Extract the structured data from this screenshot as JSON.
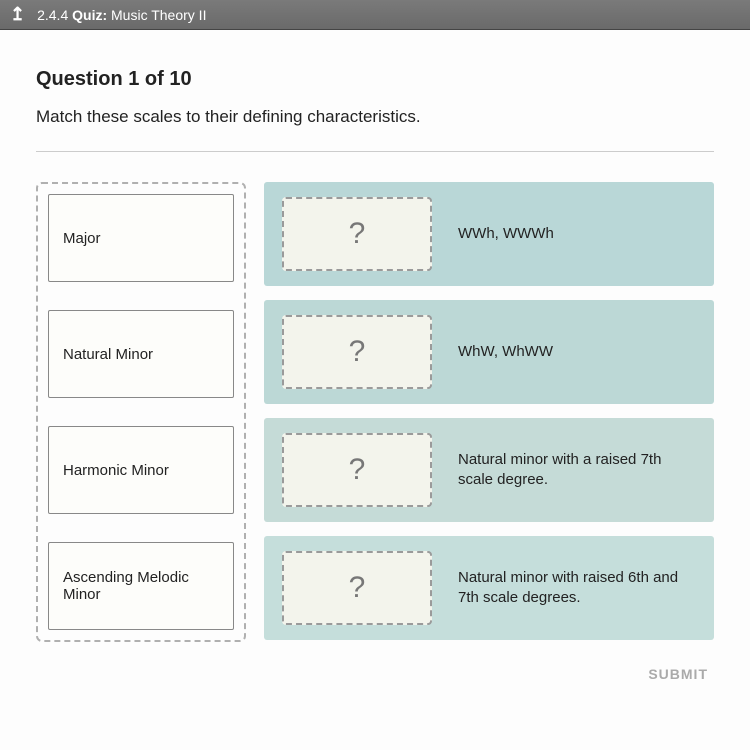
{
  "topbar": {
    "back_glyph": "↥",
    "section": "2.4.4",
    "quiz_label": "Quiz:",
    "title": "Music Theory II"
  },
  "question": {
    "header": "Question 1 of 10",
    "prompt": "Match these scales to their defining characteristics."
  },
  "draggables": [
    {
      "label": "Major"
    },
    {
      "label": "Natural Minor"
    },
    {
      "label": "Harmonic Minor"
    },
    {
      "label": "Ascending Melodic Minor"
    }
  ],
  "targets": [
    {
      "placeholder": "?",
      "answer": "WWh, WWWh",
      "bg": "#b9d7d7"
    },
    {
      "placeholder": "?",
      "answer": "WhW, WhWW",
      "bg": "#bcd8d6"
    },
    {
      "placeholder": "?",
      "answer": "Natural minor with a raised 7th scale degree.",
      "bg": "#c5dbd7"
    },
    {
      "placeholder": "?",
      "answer": "Natural minor with raised 6th and 7th scale degrees.",
      "bg": "#c5dedb"
    }
  ],
  "submit": {
    "label": "SUBMIT"
  },
  "colors": {
    "page_bg": "#fdfdfd",
    "body_bg": "#e0e0e0",
    "topbar_bg": "#6a6a6a",
    "border_dash": "#b0b0b0",
    "slot_bg": "#f3f4ec",
    "qmark_color": "#777777"
  }
}
